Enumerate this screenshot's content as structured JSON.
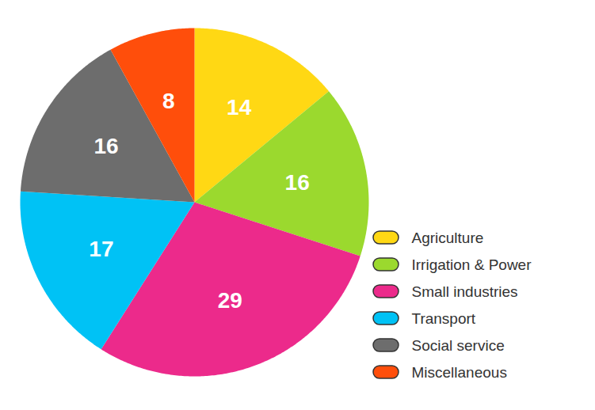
{
  "chart_data": {
    "type": "pie",
    "categories": [
      "Agriculture",
      "Irrigation & Power",
      "Small industries",
      "Transport",
      "Social service",
      "Miscellaneous"
    ],
    "values": [
      14,
      16,
      29,
      17,
      16,
      8
    ],
    "colors": [
      "#FFD814",
      "#9BD92E",
      "#EC2A8B",
      "#00C2F5",
      "#6D6D6D",
      "#FF4E0B"
    ],
    "data_labels": true,
    "legend": "lower right"
  }
}
